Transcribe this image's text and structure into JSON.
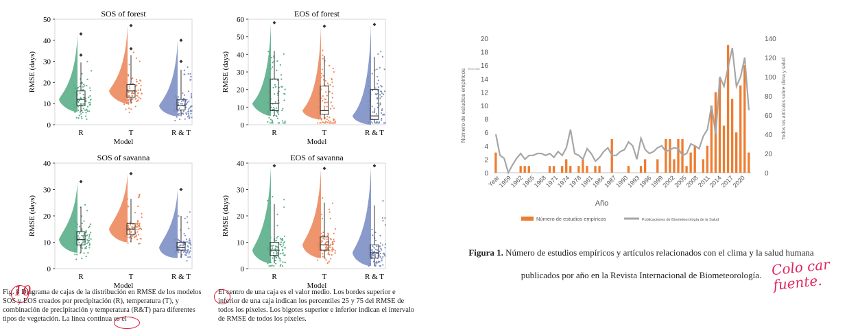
{
  "violin_panels": [
    {
      "title": "SOS of forest",
      "ylabel": "RMSE (days)",
      "xlabel": "Model",
      "ylim": [
        0,
        50
      ],
      "yticks": [
        0,
        10,
        20,
        30,
        40,
        50
      ],
      "categories": [
        "R",
        "T",
        "R & T"
      ],
      "medians": [
        12,
        16,
        9
      ],
      "q1": [
        9,
        13,
        7
      ],
      "q3": [
        16,
        19,
        12
      ],
      "outliers": [
        [
          43,
          33
        ],
        [
          47,
          36
        ],
        [
          40,
          30
        ]
      ]
    },
    {
      "title": "EOS of forest",
      "ylabel": "RMSE (days)",
      "xlabel": "Model",
      "ylim": [
        0,
        60
      ],
      "yticks": [
        0,
        10,
        20,
        30,
        40,
        50,
        60
      ],
      "categories": [
        "R",
        "T",
        "R & T"
      ],
      "medians": [
        12,
        8,
        5
      ],
      "q1": [
        8,
        6,
        3
      ],
      "q3": [
        26,
        22,
        20
      ],
      "outliers": [
        [
          58
        ],
        [
          56
        ],
        [
          57
        ]
      ]
    },
    {
      "title": "SOS of savanna",
      "ylabel": "RMSE (days)",
      "xlabel": "Model",
      "ylim": [
        0,
        40
      ],
      "yticks": [
        0,
        10,
        20,
        30,
        40
      ],
      "categories": [
        "R",
        "T",
        "R & T"
      ],
      "medians": [
        11,
        15,
        8
      ],
      "q1": [
        9,
        13,
        7
      ],
      "q3": [
        14,
        17,
        10
      ],
      "outliers": [
        [
          33
        ],
        [
          36
        ],
        [
          30
        ]
      ]
    },
    {
      "title": "EOS of savanna",
      "ylabel": "RMSE (days)",
      "xlabel": "Model",
      "ylim": [
        0,
        40
      ],
      "yticks": [
        0,
        10,
        20,
        30,
        40
      ],
      "categories": [
        "R",
        "T",
        "R & T"
      ],
      "medians": [
        7,
        9,
        6
      ],
      "q1": [
        5,
        7,
        4
      ],
      "q3": [
        10,
        12,
        9
      ],
      "outliers": [
        [
          39
        ],
        [
          38
        ],
        [
          39
        ]
      ]
    }
  ],
  "violin_colors": [
    "#5aae8a",
    "#ec8a5e",
    "#7d8fc4"
  ],
  "chart_data": {
    "type": "bar",
    "title": "",
    "xlabel": "Año",
    "ylabel": "Número de estudios empíricos",
    "y2label": "Todos los artículos sobre clima y salud",
    "ylim": [
      0,
      20
    ],
    "y2lim": [
      0,
      140
    ],
    "yticks": [
      0,
      2,
      4,
      6,
      8,
      10,
      12,
      14,
      16,
      18,
      20
    ],
    "y2ticks": [
      0,
      20,
      40,
      60,
      80,
      100,
      120,
      140
    ],
    "xtick_labels": [
      "Year",
      "1959",
      "1962",
      "1965",
      "1968",
      "1971",
      "1974",
      "1978",
      "1981",
      "1984",
      "1987",
      "1990",
      "1993",
      "1996",
      "1999",
      "2002",
      "2005",
      "2008",
      "2011",
      "2014",
      "2017",
      "2020"
    ],
    "bar_color": "#ed7d31",
    "line_color": "#a6a6a6",
    "bars": [
      3,
      0,
      0,
      0,
      0,
      0,
      1,
      1,
      1,
      0,
      0,
      0,
      0,
      1,
      1,
      0,
      1,
      2,
      1,
      0,
      1,
      2,
      1,
      0,
      1,
      1,
      0,
      0,
      5,
      0,
      0,
      0,
      1,
      0,
      0,
      1,
      2,
      0,
      0,
      2,
      0,
      5,
      5,
      2,
      5,
      5,
      1,
      3,
      4,
      0,
      2,
      4,
      10,
      12,
      14,
      7,
      19,
      11,
      6,
      13,
      16,
      3
    ],
    "line": [
      40,
      18,
      15,
      0,
      8,
      15,
      20,
      14,
      18,
      18,
      20,
      20,
      18,
      20,
      16,
      22,
      18,
      26,
      45,
      20,
      18,
      14,
      25,
      20,
      12,
      16,
      22,
      26,
      18,
      18,
      22,
      24,
      32,
      28,
      14,
      36,
      24,
      20,
      22,
      26,
      28,
      22,
      24,
      26,
      25,
      18,
      20,
      30,
      28,
      25,
      38,
      45,
      70,
      40,
      100,
      90,
      110,
      130,
      90,
      100,
      120,
      65
    ],
    "legend": [
      "Número de estudios empíricos",
      "Publicaciones de Biometeorología de la Salud"
    ],
    "small_axis_note": "decimals"
  },
  "captions": {
    "fig_left_prefix": "Fig. 8 Diagrama de cajas de la distribución en RMSE de los modelos SOS y EOS creados por precipitación (R), temperatura (T), y combinación de precipitación y temperatura (R&T) para diferentes tipos de vegetación. La línea continua ",
    "fig_left_suffix": "es el",
    "fig_mid": "El centro de una caja es el valor medio. Los bordes superior e inferior de una caja indican los percentiles 25 y 75 del RMSE de todos los píxeles. Los bigotes superior e inferior indican el intervalo de RMSE de todos los píxeles.",
    "fig1_label": "Figura 1.",
    "fig1_text_a": "Número de estudios empíricos y artículos relacionados con el clima y la salud humana",
    "fig1_text_b": "publicados por año en la Revista Internacional de Biometeorología."
  },
  "annotations": {
    "handwritten_number": "10",
    "handwritten_note": "Colo car fuente."
  }
}
